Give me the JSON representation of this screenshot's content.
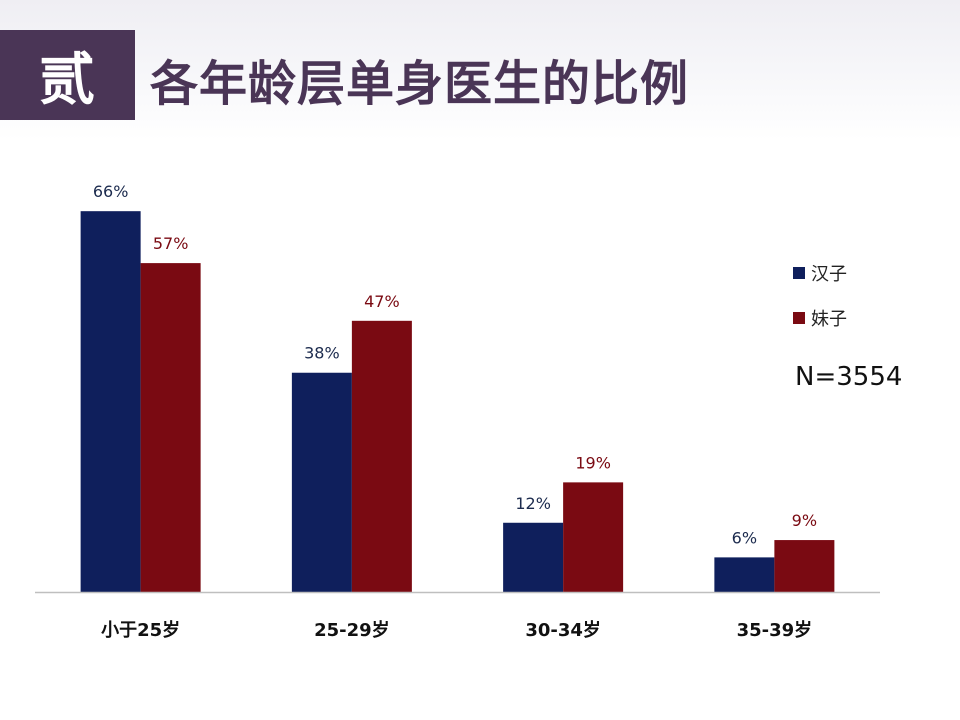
{
  "header": {
    "section_label": "贰",
    "title": "各年龄层单身医生的比例"
  },
  "legend": {
    "items": [
      {
        "label": "汉子",
        "color": "#0f1f5c"
      },
      {
        "label": "妹子",
        "color": "#7a0a12"
      }
    ]
  },
  "sample_size": "N=3554",
  "chart_data": {
    "type": "bar",
    "title": "各年龄层单身医生的比例",
    "categories": [
      "小于25岁",
      "25-29岁",
      "30-34岁",
      "35-39岁"
    ],
    "series": [
      {
        "name": "汉子",
        "values": [
          66,
          38,
          12,
          6
        ],
        "labels": [
          "66%",
          "38%",
          "12%",
          "6%"
        ],
        "color": "#0f1f5c",
        "label_color": "#1c2b4e"
      },
      {
        "name": "妹子",
        "values": [
          57,
          47,
          19,
          9
        ],
        "labels": [
          "57%",
          "47%",
          "19%",
          "9%"
        ],
        "color": "#7a0a12",
        "label_color": "#7a0a12"
      }
    ],
    "unit": "%",
    "ylim": [
      0,
      70
    ],
    "grid": false,
    "legend_position": "right",
    "xlabel": "",
    "ylabel": ""
  }
}
